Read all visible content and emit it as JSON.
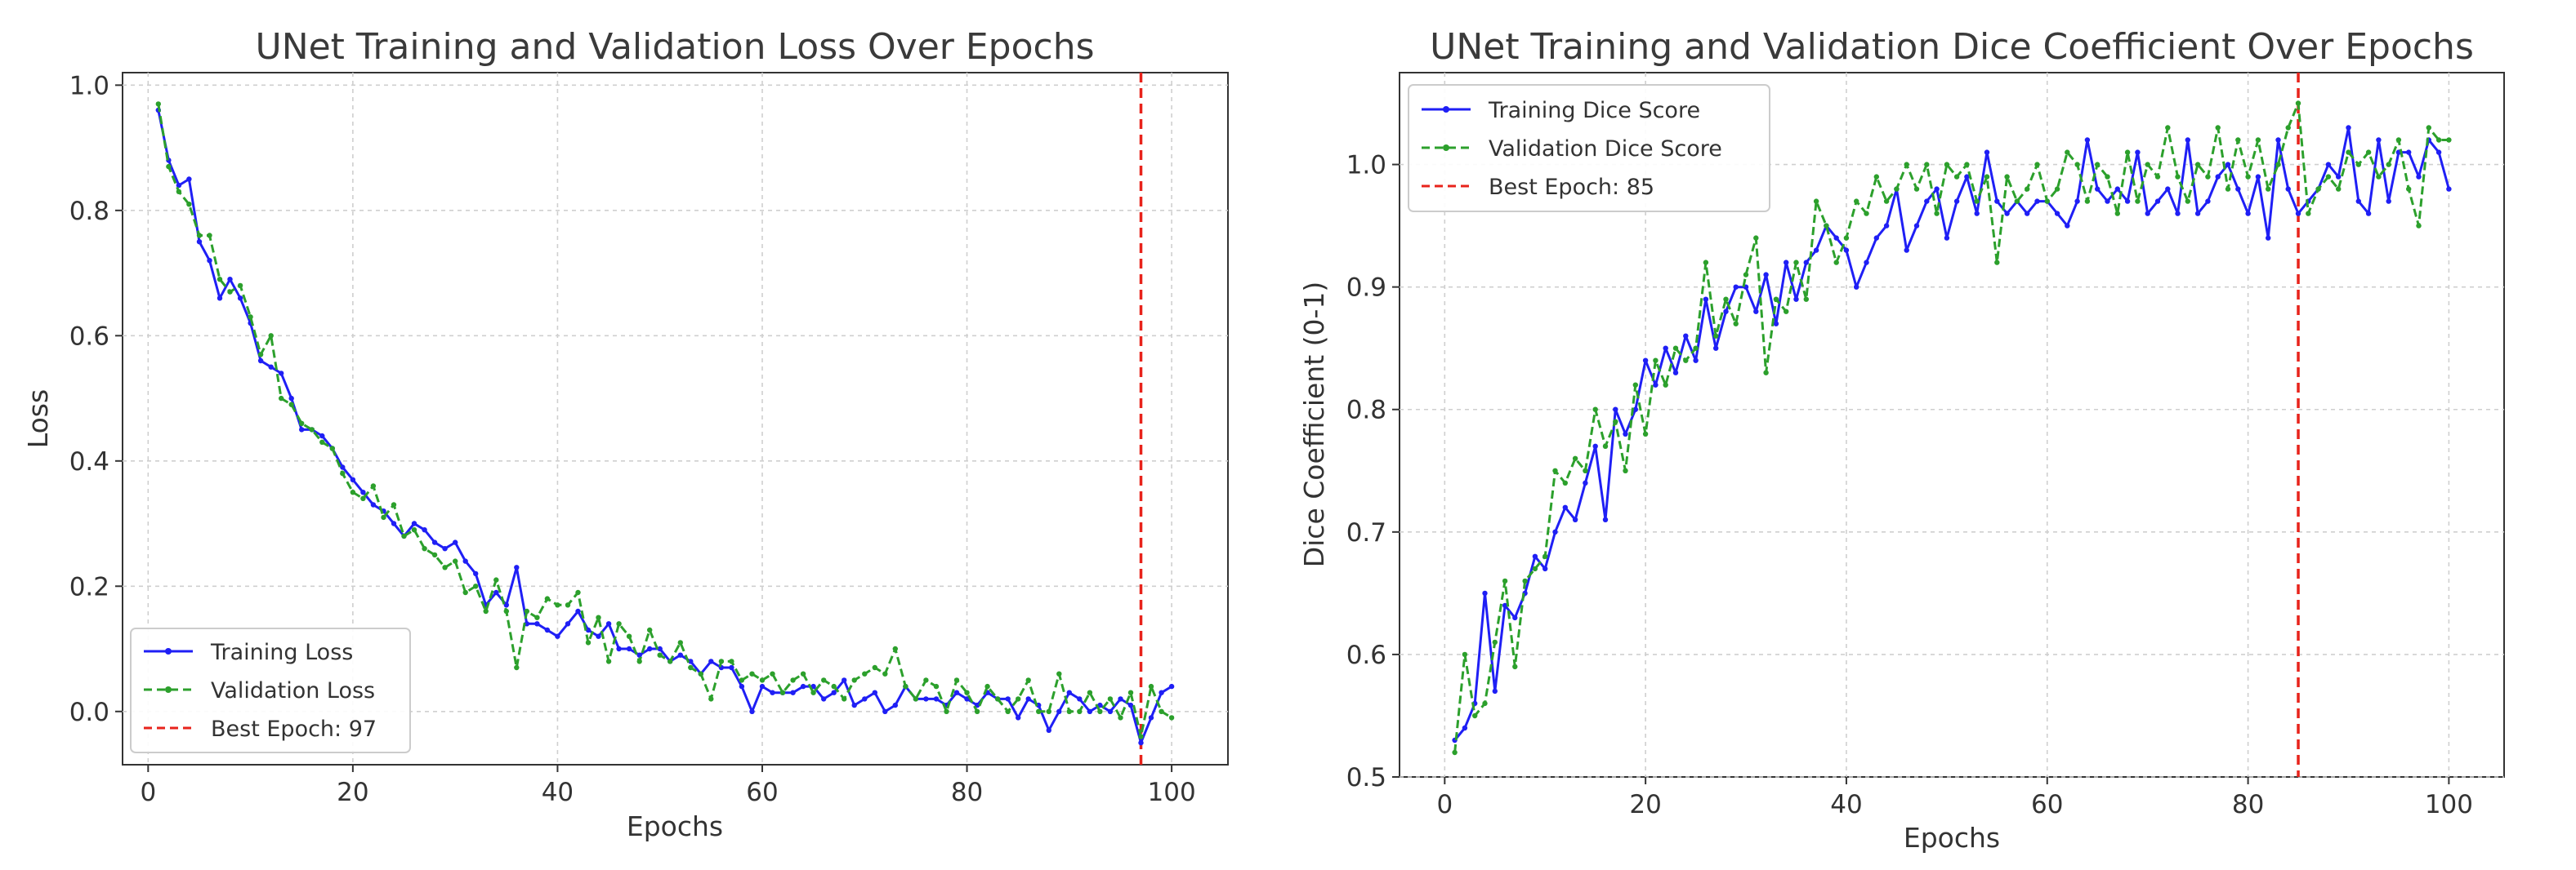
{
  "chart_data": [
    {
      "type": "line",
      "title": "UNet Training and Validation Loss Over Epochs",
      "xlabel": "Epochs",
      "ylabel": "Loss",
      "xlim": [
        -2.5,
        105.5
      ],
      "ylim": [
        -0.085,
        1.02
      ],
      "xticks": [
        0,
        20,
        40,
        60,
        80,
        100
      ],
      "yticks": [
        0.0,
        0.2,
        0.4,
        0.6,
        0.8,
        1.0
      ],
      "xtick_labels": [
        "0",
        "20",
        "40",
        "60",
        "80",
        "100"
      ],
      "ytick_labels": [
        "0.0",
        "0.2",
        "0.4",
        "0.6",
        "0.8",
        "1.0"
      ],
      "grid": true,
      "legend_position": "lower-left",
      "best_epoch": 97,
      "series": [
        {
          "name": "Training Loss",
          "color": "#1f1ff5",
          "style": "solid-dot",
          "x": [
            1,
            2,
            3,
            4,
            5,
            6,
            7,
            8,
            9,
            10,
            11,
            12,
            13,
            14,
            15,
            16,
            17,
            18,
            19,
            20,
            21,
            22,
            23,
            24,
            25,
            26,
            27,
            28,
            29,
            30,
            31,
            32,
            33,
            34,
            35,
            36,
            37,
            38,
            39,
            40,
            41,
            42,
            43,
            44,
            45,
            46,
            47,
            48,
            49,
            50,
            51,
            52,
            53,
            54,
            55,
            56,
            57,
            58,
            59,
            60,
            61,
            62,
            63,
            64,
            65,
            66,
            67,
            68,
            69,
            70,
            71,
            72,
            73,
            74,
            75,
            76,
            77,
            78,
            79,
            80,
            81,
            82,
            83,
            84,
            85,
            86,
            87,
            88,
            89,
            90,
            91,
            92,
            93,
            94,
            95,
            96,
            97,
            98,
            99,
            100
          ],
          "values": [
            0.96,
            0.88,
            0.84,
            0.85,
            0.75,
            0.72,
            0.66,
            0.69,
            0.66,
            0.62,
            0.56,
            0.55,
            0.54,
            0.5,
            0.45,
            0.45,
            0.44,
            0.42,
            0.39,
            0.37,
            0.35,
            0.33,
            0.32,
            0.3,
            0.28,
            0.3,
            0.29,
            0.27,
            0.26,
            0.27,
            0.24,
            0.22,
            0.17,
            0.19,
            0.17,
            0.23,
            0.14,
            0.14,
            0.13,
            0.12,
            0.14,
            0.16,
            0.13,
            0.12,
            0.14,
            0.1,
            0.1,
            0.09,
            0.1,
            0.1,
            0.08,
            0.09,
            0.08,
            0.06,
            0.08,
            0.07,
            0.07,
            0.04,
            0.0,
            0.04,
            0.03,
            0.03,
            0.03,
            0.04,
            0.04,
            0.02,
            0.03,
            0.05,
            0.01,
            0.02,
            0.03,
            0.0,
            0.01,
            0.04,
            0.02,
            0.02,
            0.02,
            0.01,
            0.03,
            0.02,
            0.01,
            0.03,
            0.02,
            0.02,
            -0.01,
            0.02,
            0.01,
            -0.03,
            0.0,
            0.03,
            0.02,
            0.0,
            0.01,
            0.0,
            0.02,
            0.01,
            -0.05,
            -0.01,
            0.03,
            0.04
          ]
        },
        {
          "name": "Validation Loss",
          "color": "#2ca02c",
          "style": "dashed-dot",
          "x": [
            1,
            2,
            3,
            4,
            5,
            6,
            7,
            8,
            9,
            10,
            11,
            12,
            13,
            14,
            15,
            16,
            17,
            18,
            19,
            20,
            21,
            22,
            23,
            24,
            25,
            26,
            27,
            28,
            29,
            30,
            31,
            32,
            33,
            34,
            35,
            36,
            37,
            38,
            39,
            40,
            41,
            42,
            43,
            44,
            45,
            46,
            47,
            48,
            49,
            50,
            51,
            52,
            53,
            54,
            55,
            56,
            57,
            58,
            59,
            60,
            61,
            62,
            63,
            64,
            65,
            66,
            67,
            68,
            69,
            70,
            71,
            72,
            73,
            74,
            75,
            76,
            77,
            78,
            79,
            80,
            81,
            82,
            83,
            84,
            85,
            86,
            87,
            88,
            89,
            90,
            91,
            92,
            93,
            94,
            95,
            96,
            97,
            98,
            99,
            100
          ],
          "values": [
            0.97,
            0.87,
            0.83,
            0.81,
            0.76,
            0.76,
            0.69,
            0.67,
            0.68,
            0.63,
            0.57,
            0.6,
            0.5,
            0.49,
            0.46,
            0.45,
            0.43,
            0.42,
            0.38,
            0.35,
            0.34,
            0.36,
            0.31,
            0.33,
            0.28,
            0.29,
            0.26,
            0.25,
            0.23,
            0.24,
            0.19,
            0.2,
            0.16,
            0.21,
            0.16,
            0.07,
            0.16,
            0.15,
            0.18,
            0.17,
            0.17,
            0.19,
            0.11,
            0.15,
            0.08,
            0.14,
            0.12,
            0.08,
            0.13,
            0.09,
            0.08,
            0.11,
            0.07,
            0.06,
            0.02,
            0.08,
            0.08,
            0.05,
            0.06,
            0.05,
            0.06,
            0.03,
            0.05,
            0.06,
            0.03,
            0.05,
            0.04,
            0.02,
            0.05,
            0.06,
            0.07,
            0.06,
            0.1,
            0.04,
            0.02,
            0.05,
            0.04,
            0.0,
            0.05,
            0.03,
            0.0,
            0.04,
            0.02,
            0.0,
            0.02,
            0.05,
            0.0,
            0.0,
            0.06,
            0.0,
            0.0,
            0.03,
            0.0,
            0.02,
            -0.01,
            0.03,
            -0.04,
            0.04,
            0.0,
            -0.01
          ]
        }
      ]
    },
    {
      "type": "line",
      "title": "UNet Training and Validation Dice Coefficient Over Epochs",
      "xlabel": "Epochs",
      "ylabel": "Dice Coefficient (0-1)",
      "xlim": [
        -4.5,
        105.5
      ],
      "ylim": [
        0.5,
        1.075
      ],
      "xticks": [
        0,
        20,
        40,
        60,
        80,
        100
      ],
      "yticks": [
        0.5,
        0.6,
        0.7,
        0.8,
        0.9,
        1.0
      ],
      "xtick_labels": [
        "0",
        "20",
        "40",
        "60",
        "80",
        "100"
      ],
      "ytick_labels": [
        "0.5",
        "0.6",
        "0.7",
        "0.8",
        "0.9",
        "1.0"
      ],
      "grid": true,
      "legend_position": "top-left",
      "best_epoch": 85,
      "series": [
        {
          "name": "Training Dice Score",
          "color": "#1f1ff5",
          "style": "solid-dot",
          "x": [
            1,
            2,
            3,
            4,
            5,
            6,
            7,
            8,
            9,
            10,
            11,
            12,
            13,
            14,
            15,
            16,
            17,
            18,
            19,
            20,
            21,
            22,
            23,
            24,
            25,
            26,
            27,
            28,
            29,
            30,
            31,
            32,
            33,
            34,
            35,
            36,
            37,
            38,
            39,
            40,
            41,
            42,
            43,
            44,
            45,
            46,
            47,
            48,
            49,
            50,
            51,
            52,
            53,
            54,
            55,
            56,
            57,
            58,
            59,
            60,
            61,
            62,
            63,
            64,
            65,
            66,
            67,
            68,
            69,
            70,
            71,
            72,
            73,
            74,
            75,
            76,
            77,
            78,
            79,
            80,
            81,
            82,
            83,
            84,
            85,
            86,
            87,
            88,
            89,
            90,
            91,
            92,
            93,
            94,
            95,
            96,
            97,
            98,
            99,
            100
          ],
          "values": [
            0.53,
            0.54,
            0.56,
            0.65,
            0.57,
            0.64,
            0.63,
            0.65,
            0.68,
            0.67,
            0.7,
            0.72,
            0.71,
            0.74,
            0.77,
            0.71,
            0.8,
            0.78,
            0.8,
            0.84,
            0.82,
            0.85,
            0.83,
            0.86,
            0.84,
            0.89,
            0.85,
            0.88,
            0.9,
            0.9,
            0.88,
            0.91,
            0.87,
            0.92,
            0.89,
            0.92,
            0.93,
            0.95,
            0.94,
            0.93,
            0.9,
            0.92,
            0.94,
            0.95,
            0.98,
            0.93,
            0.95,
            0.97,
            0.98,
            0.94,
            0.97,
            0.99,
            0.96,
            1.01,
            0.97,
            0.96,
            0.97,
            0.96,
            0.97,
            0.97,
            0.96,
            0.95,
            0.97,
            1.02,
            0.98,
            0.97,
            0.98,
            0.97,
            1.01,
            0.96,
            0.97,
            0.98,
            0.96,
            1.02,
            0.96,
            0.97,
            0.99,
            1.0,
            0.98,
            0.96,
            0.99,
            0.94,
            1.02,
            0.98,
            0.96,
            0.97,
            0.98,
            1.0,
            0.99,
            1.03,
            0.97,
            0.96,
            1.02,
            0.97,
            1.01,
            1.01,
            0.99,
            1.02,
            1.01,
            0.98
          ]
        },
        {
          "name": "Validation Dice Score",
          "color": "#2ca02c",
          "style": "dashed-dot",
          "x": [
            1,
            2,
            3,
            4,
            5,
            6,
            7,
            8,
            9,
            10,
            11,
            12,
            13,
            14,
            15,
            16,
            17,
            18,
            19,
            20,
            21,
            22,
            23,
            24,
            25,
            26,
            27,
            28,
            29,
            30,
            31,
            32,
            33,
            34,
            35,
            36,
            37,
            38,
            39,
            40,
            41,
            42,
            43,
            44,
            45,
            46,
            47,
            48,
            49,
            50,
            51,
            52,
            53,
            54,
            55,
            56,
            57,
            58,
            59,
            60,
            61,
            62,
            63,
            64,
            65,
            66,
            67,
            68,
            69,
            70,
            71,
            72,
            73,
            74,
            75,
            76,
            77,
            78,
            79,
            80,
            81,
            82,
            83,
            84,
            85,
            86,
            87,
            88,
            89,
            90,
            91,
            92,
            93,
            94,
            95,
            96,
            97,
            98,
            99,
            100
          ],
          "values": [
            0.52,
            0.6,
            0.55,
            0.56,
            0.61,
            0.66,
            0.59,
            0.66,
            0.67,
            0.68,
            0.75,
            0.74,
            0.76,
            0.75,
            0.8,
            0.77,
            0.79,
            0.75,
            0.82,
            0.78,
            0.84,
            0.82,
            0.85,
            0.84,
            0.85,
            0.92,
            0.86,
            0.89,
            0.87,
            0.91,
            0.94,
            0.83,
            0.89,
            0.88,
            0.92,
            0.89,
            0.97,
            0.95,
            0.92,
            0.94,
            0.97,
            0.96,
            0.99,
            0.97,
            0.98,
            1.0,
            0.98,
            1.0,
            0.96,
            1.0,
            0.99,
            1.0,
            0.97,
            0.99,
            0.92,
            0.99,
            0.97,
            0.98,
            1.0,
            0.97,
            0.98,
            1.01,
            1.0,
            0.97,
            1.0,
            0.99,
            0.96,
            1.01,
            0.97,
            1.0,
            0.99,
            1.03,
            0.99,
            0.97,
            1.0,
            0.99,
            1.03,
            0.98,
            1.02,
            0.99,
            1.02,
            0.98,
            1.0,
            1.03,
            1.05,
            0.96,
            0.98,
            0.99,
            0.98,
            1.01,
            1.0,
            1.01,
            0.99,
            1.0,
            1.02,
            0.98,
            0.95,
            1.03,
            1.02,
            1.02
          ]
        }
      ]
    }
  ],
  "legend_labels": {
    "best_epoch_loss": "Best Epoch: 97",
    "best_epoch_dice": "Best Epoch: 85"
  },
  "colors": {
    "training": "#1f1ff5",
    "validation": "#2ca02c",
    "best_epoch": "#e8231b"
  }
}
